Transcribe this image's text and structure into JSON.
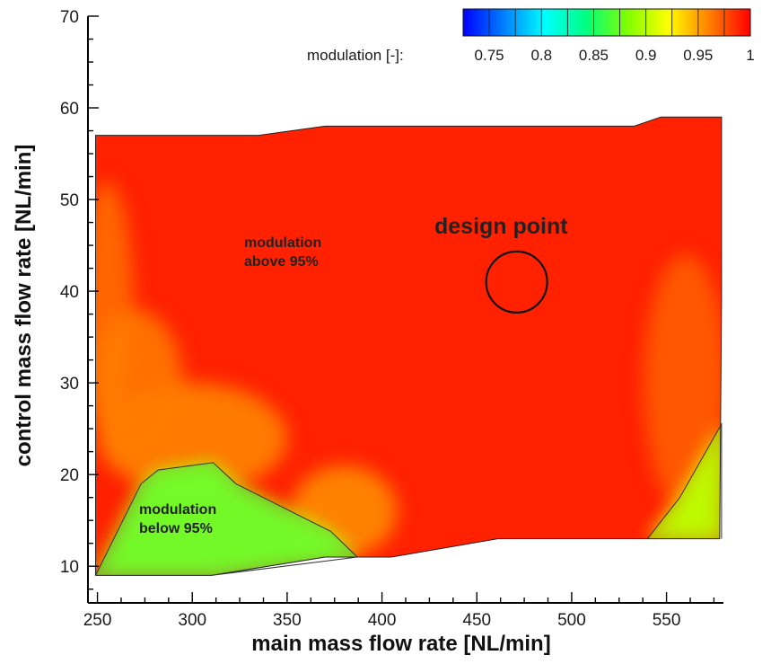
{
  "chart_data": {
    "type": "heatmap",
    "title": "",
    "xlabel": "main mass flow rate [NL/min]",
    "ylabel": "control mass flow rate [NL/min]",
    "xlim": [
      245,
      580
    ],
    "ylim": [
      6,
      70
    ],
    "x_ticks": [
      250,
      300,
      350,
      400,
      450,
      500,
      550
    ],
    "y_ticks": [
      10,
      20,
      30,
      40,
      50,
      60,
      70
    ],
    "colorbar": {
      "label": "modulation [-]:",
      "range": [
        0.725,
        1.0
      ],
      "tick_values": [
        0.75,
        0.8,
        0.85,
        0.9,
        0.95,
        1
      ],
      "tick_labels": [
        "0.75",
        "0.8",
        "0.85",
        "0.9",
        "0.95",
        "1"
      ],
      "colors": [
        "#0000ff",
        "#0080ff",
        "#00ffff",
        "#00ff80",
        "#80ff00",
        "#ffff00",
        "#ff8000",
        "#ff0000"
      ]
    },
    "domain_boundary": [
      [
        249,
        57
      ],
      [
        335,
        57
      ],
      [
        370,
        58
      ],
      [
        533,
        58
      ],
      [
        547,
        59
      ],
      [
        579,
        59
      ],
      [
        579,
        39
      ],
      [
        578,
        13
      ],
      [
        461,
        13
      ],
      [
        405,
        11
      ],
      [
        370,
        11
      ],
      [
        310,
        9
      ],
      [
        249,
        9
      ]
    ],
    "regions_below_95": [
      {
        "label": "modulation below 95%",
        "value_range": [
          0.85,
          0.95
        ],
        "boundary": [
          [
            249,
            9
          ],
          [
            273,
            19
          ],
          [
            282,
            20.5
          ],
          [
            311,
            21.3
          ],
          [
            323,
            19
          ],
          [
            373,
            13.8
          ],
          [
            387,
            11
          ],
          [
            310,
            9
          ]
        ]
      },
      {
        "value_range": [
          0.88,
          0.95
        ],
        "boundary": [
          [
            540,
            13
          ],
          [
            557,
            17.5
          ],
          [
            579,
            25.5
          ],
          [
            579,
            13
          ]
        ]
      }
    ],
    "dominant_value": 0.99,
    "annotations": [
      {
        "text_lines": [
          "modulation",
          "above 95%"
        ],
        "x": 300,
        "y": 44
      },
      {
        "text_lines": [
          "modulation",
          "below 95%"
        ],
        "x": 281,
        "y": 15
      }
    ],
    "design_point": {
      "label": "design point",
      "x": 471,
      "y": 41
    }
  }
}
